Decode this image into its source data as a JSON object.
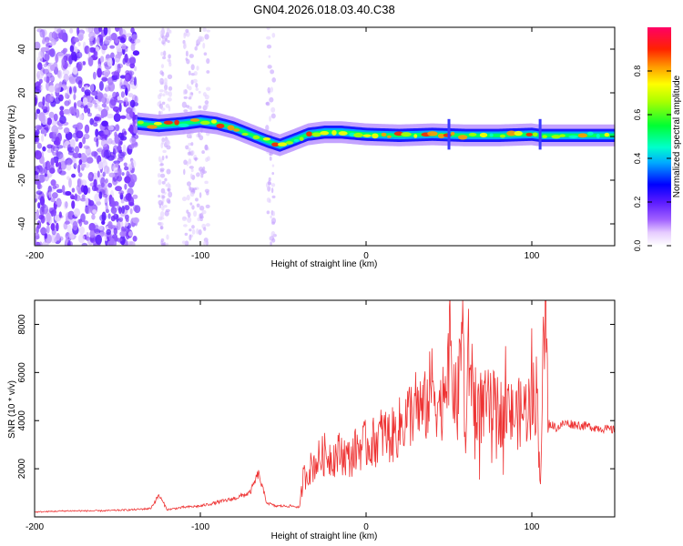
{
  "title": "GN04.2026.018.03.40.C38",
  "chart_data": [
    {
      "type": "heatmap",
      "xlabel": "Height of straight line (km)",
      "ylabel": "Frequency (Hz)",
      "xlim": [
        -200,
        150
      ],
      "ylim": [
        -50,
        50
      ],
      "xticks": [
        -200,
        -100,
        0,
        100
      ],
      "yticks": [
        -40,
        -20,
        0,
        20,
        40
      ],
      "colorbar": {
        "label": "Normalized spectral amplitude",
        "range": [
          0,
          1
        ],
        "ticks": [
          0.0,
          0.2,
          0.4,
          0.6,
          0.8
        ],
        "tick_labels": [
          "0.0",
          "0.2",
          "0.4",
          "0.6",
          "0.8"
        ]
      },
      "ridge": {
        "x": [
          -138,
          -125,
          -110,
          -100,
          -90,
          -80,
          -70,
          -60,
          -52,
          -45,
          -35,
          -25,
          -15,
          0,
          20,
          40,
          60,
          80,
          100,
          105,
          150
        ],
        "freq": [
          6,
          5,
          6,
          7,
          6,
          4,
          1,
          -2,
          -4,
          -2,
          1,
          2,
          2,
          1,
          0.5,
          1,
          0.5,
          0.5,
          1,
          0.5,
          0.5
        ]
      },
      "noise_region_x": [
        -200,
        -138
      ]
    },
    {
      "type": "line",
      "xlabel": "Height of straight line (km)",
      "ylabel": "SNR (10 * v/v)",
      "xlim": [
        -200,
        150
      ],
      "ylim": [
        0,
        9000
      ],
      "xticks": [
        -200,
        -100,
        0,
        100
      ],
      "yticks": [
        2000,
        4000,
        6000,
        8000
      ],
      "series": [
        {
          "name": "SNR",
          "color": "#ee3333",
          "x": [
            -200,
            -180,
            -160,
            -140,
            -130,
            -125,
            -120,
            -110,
            -100,
            -90,
            -80,
            -70,
            -65,
            -60,
            -55,
            -50,
            -45,
            -40,
            -38,
            -35,
            -30,
            -25,
            -20,
            -15,
            -10,
            -5,
            0,
            5,
            10,
            15,
            20,
            25,
            30,
            35,
            40,
            45,
            50,
            55,
            58,
            60,
            62,
            65,
            70,
            75,
            80,
            85,
            90,
            95,
            100,
            103,
            105,
            108,
            110,
            115,
            120,
            130,
            140,
            150
          ],
          "y": [
            200,
            250,
            250,
            300,
            350,
            900,
            300,
            400,
            450,
            600,
            750,
            1000,
            1800,
            600,
            450,
            450,
            450,
            400,
            1600,
            1900,
            2300,
            2600,
            2500,
            2700,
            2400,
            2900,
            3000,
            3100,
            3500,
            3300,
            3700,
            4200,
            4600,
            4400,
            5500,
            4500,
            7100,
            4300,
            8500,
            2800,
            6900,
            5000,
            4500,
            4600,
            4400,
            4300,
            4200,
            4400,
            4700,
            5300,
            1400,
            9000,
            3900,
            3700,
            3900,
            3800,
            3700,
            3600
          ]
        }
      ]
    }
  ]
}
